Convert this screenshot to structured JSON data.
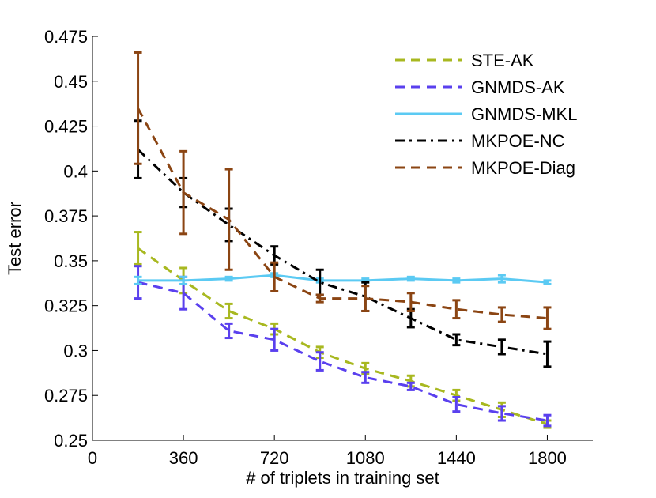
{
  "chart_data": {
    "type": "line",
    "title": "",
    "xlabel": "# of triplets in training set",
    "ylabel": "Test error",
    "xlim": [
      0,
      1980
    ],
    "ylim": [
      0.25,
      0.475
    ],
    "x_ticks": [
      0,
      360,
      720,
      1080,
      1440,
      1800
    ],
    "x_tick_labels": [
      "0",
      "360",
      "720",
      "1080",
      "1440",
      "1800"
    ],
    "y_ticks": [
      0.25,
      0.275,
      0.3,
      0.325,
      0.35,
      0.375,
      0.4,
      0.425,
      0.45,
      0.475
    ],
    "y_tick_labels": [
      "0.25",
      "0.275",
      "0.3",
      "0.325",
      "0.35",
      "0.375",
      "0.4",
      "0.425",
      "0.45",
      "0.475"
    ],
    "grid": false,
    "legend_position": "top-right",
    "x": [
      180,
      360,
      540,
      720,
      900,
      1080,
      1260,
      1440,
      1620,
      1800
    ],
    "series": [
      {
        "name": "STE-AK",
        "color": "#a8b820",
        "dash": "dashed",
        "values": [
          0.357,
          0.339,
          0.322,
          0.312,
          0.299,
          0.29,
          0.283,
          0.275,
          0.267,
          0.259
        ],
        "errors": [
          0.009,
          0.007,
          0.004,
          0.003,
          0.003,
          0.003,
          0.003,
          0.003,
          0.004,
          0.002
        ]
      },
      {
        "name": "GNMDS-AK",
        "color": "#5a40ee",
        "dash": "dashed",
        "values": [
          0.338,
          0.332,
          0.311,
          0.306,
          0.294,
          0.285,
          0.28,
          0.27,
          0.265,
          0.261
        ],
        "errors": [
          0.009,
          0.009,
          0.004,
          0.006,
          0.005,
          0.003,
          0.002,
          0.004,
          0.004,
          0.003
        ]
      },
      {
        "name": "GNMDS-MKL",
        "color": "#5bcaf3",
        "dash": "solid",
        "values": [
          0.339,
          0.339,
          0.34,
          0.342,
          0.339,
          0.339,
          0.34,
          0.339,
          0.34,
          0.338
        ],
        "errors": [
          0.002,
          0.002,
          0.001,
          0.001,
          0.001,
          0.001,
          0.001,
          0.001,
          0.002,
          0.001
        ]
      },
      {
        "name": "MKPOE-NC",
        "color": "#000000",
        "dash": "dashdot",
        "values": [
          0.412,
          0.388,
          0.37,
          0.353,
          0.338,
          0.33,
          0.318,
          0.306,
          0.302,
          0.298
        ],
        "errors": [
          0.016,
          0.008,
          0.009,
          0.005,
          0.007,
          0.008,
          0.005,
          0.003,
          0.004,
          0.007
        ]
      },
      {
        "name": "MKPOE-Diag",
        "color": "#8b4513",
        "dash": "dashed",
        "values": [
          0.435,
          0.388,
          0.373,
          0.341,
          0.329,
          0.329,
          0.327,
          0.323,
          0.32,
          0.318
        ],
        "errors": [
          0.031,
          0.023,
          0.028,
          0.008,
          0.002,
          0.007,
          0.005,
          0.005,
          0.004,
          0.006
        ]
      }
    ]
  }
}
